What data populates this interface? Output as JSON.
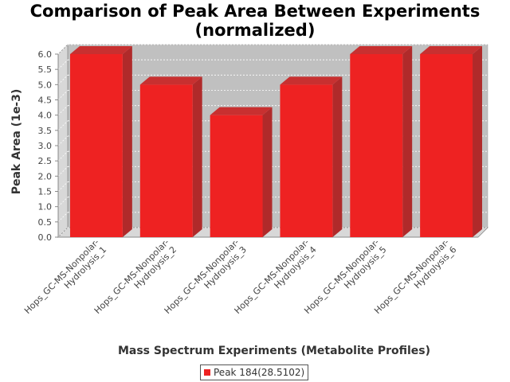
{
  "chart_data": {
    "type": "bar",
    "title_lines": [
      "Comparison of Peak Area Between Experiments",
      "(normalized)"
    ],
    "xlabel": "Mass Spectrum Experiments (Metabolite Profiles)",
    "ylabel": "Peak Area (1e-3)",
    "categories": [
      [
        "Hops_GC-MS-Nonpolar-",
        "Hydrolysis_1"
      ],
      [
        "Hops_GC-MS-Nonpolar-",
        "Hydrolysis_2"
      ],
      [
        "Hops_GC-MS-Nonpolar-",
        "Hydrolysis_3"
      ],
      [
        "Hops_GC-MS-Nonpolar-",
        "Hydrolysis_4"
      ],
      [
        "Hops_GC-MS-Nonpolar-",
        "Hydrolysis_5"
      ],
      [
        "Hops_GC-MS-Nonpolar-",
        "Hydrolysis_6"
      ]
    ],
    "series": [
      {
        "name": "Peak 184(28.5102)",
        "values": [
          6.0,
          5.0,
          4.0,
          5.0,
          6.0,
          6.0
        ],
        "color": "#ee2222"
      }
    ],
    "y_ticks": [
      "0.0",
      "0.5",
      "1.0",
      "1.5",
      "2.0",
      "2.5",
      "3.0",
      "3.5",
      "4.0",
      "4.5",
      "5.0",
      "5.5",
      "6.0"
    ],
    "ylim": [
      0,
      6.0
    ],
    "grid": true,
    "legend_position": "bottom-center",
    "colors": {
      "plot_background": "#c0c0c0",
      "bar": "#ee2222",
      "bar_top": "#c83030",
      "bar_side": "#b02a2a"
    }
  }
}
